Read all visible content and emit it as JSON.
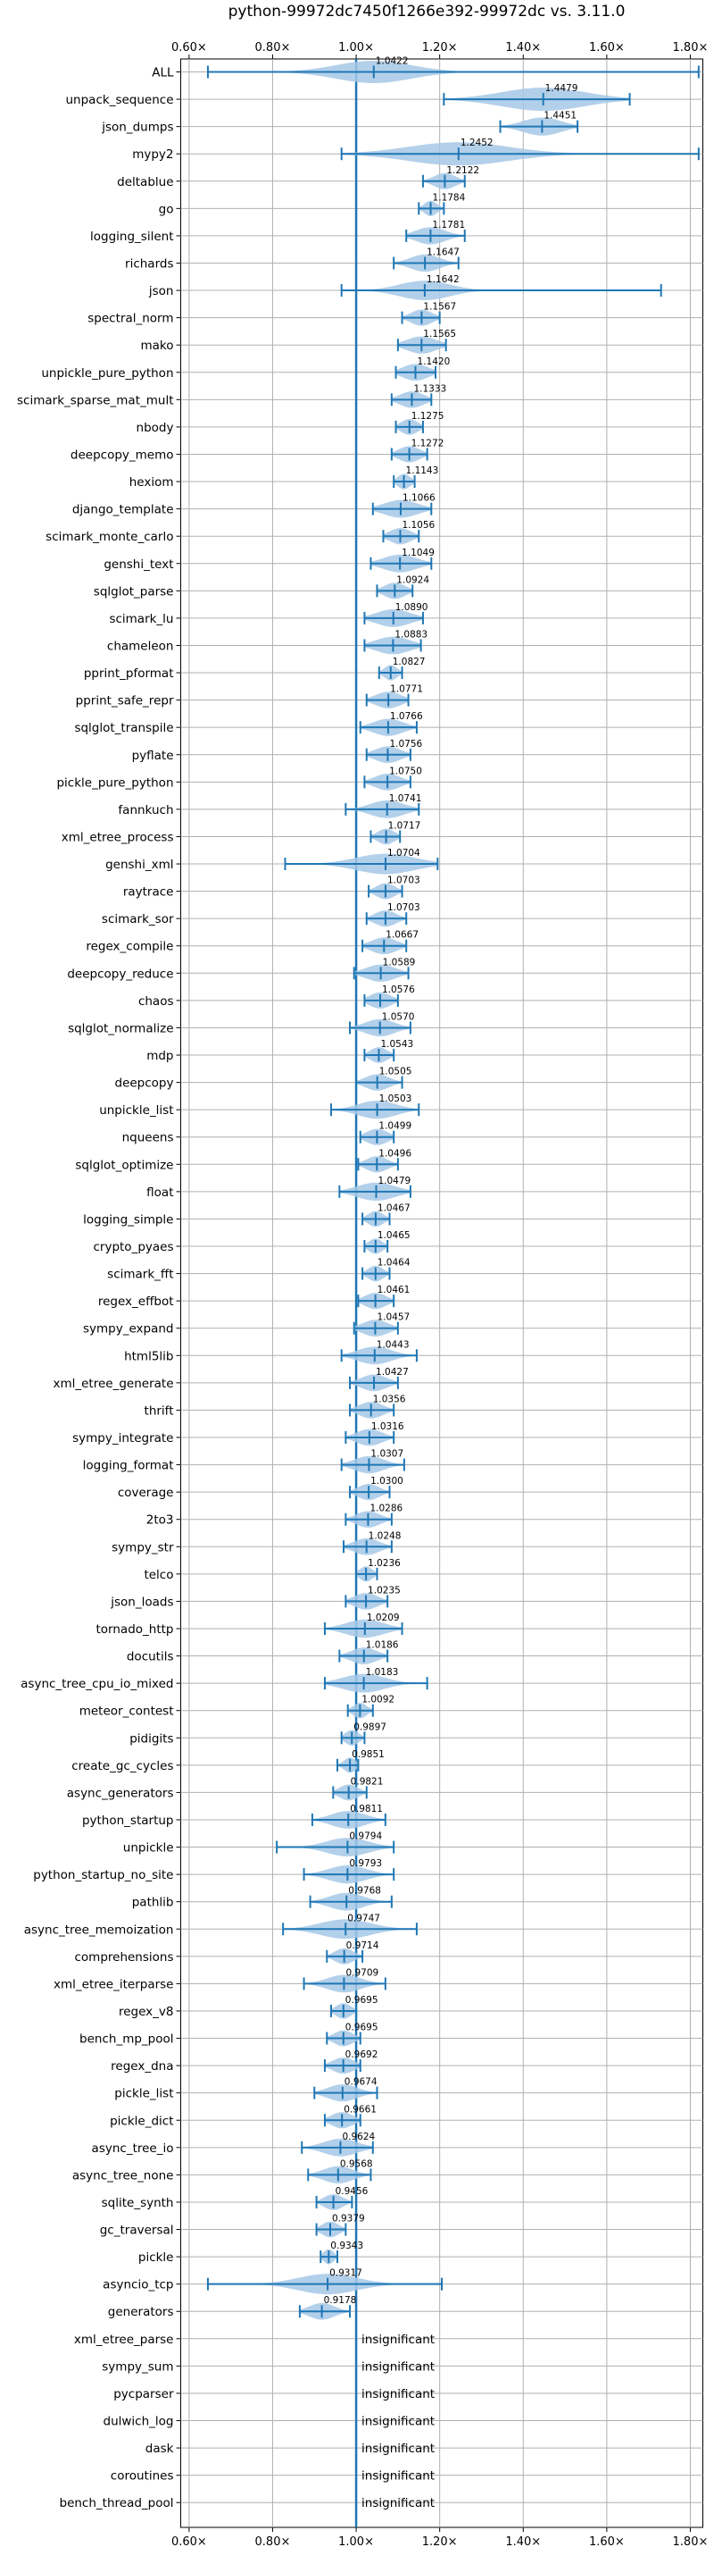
{
  "chart_data": {
    "type": "violin",
    "title": "python-99972dc7450f1266e392-99972dc vs. 3.11.0",
    "orientation": "horizontal",
    "xlim": [
      0.58,
      1.83
    ],
    "xticks": [
      0.6,
      0.8,
      1.0,
      1.2,
      1.4,
      1.6,
      1.8
    ],
    "xtick_labels": [
      "0.60×",
      "0.80×",
      "1.00×",
      "1.20×",
      "1.40×",
      "1.60×",
      "1.80×"
    ],
    "tick_positions": [
      "top",
      "bottom"
    ],
    "grid": true,
    "reference_line": 1.0,
    "colors": {
      "violin": "#a6c8e6",
      "lines": "#1f77b4",
      "grid": "#b0b0b0"
    },
    "categories": [
      "ALL",
      "unpack_sequence",
      "json_dumps",
      "mypy2",
      "deltablue",
      "go",
      "logging_silent",
      "richards",
      "json",
      "spectral_norm",
      "mako",
      "unpickle_pure_python",
      "scimark_sparse_mat_mult",
      "nbody",
      "deepcopy_memo",
      "hexiom",
      "django_template",
      "scimark_monte_carlo",
      "genshi_text",
      "sqlglot_parse",
      "scimark_lu",
      "chameleon",
      "pprint_pformat",
      "pprint_safe_repr",
      "sqlglot_transpile",
      "pyflate",
      "pickle_pure_python",
      "fannkuch",
      "xml_etree_process",
      "genshi_xml",
      "raytrace",
      "scimark_sor",
      "regex_compile",
      "deepcopy_reduce",
      "chaos",
      "sqlglot_normalize",
      "mdp",
      "deepcopy",
      "unpickle_list",
      "nqueens",
      "sqlglot_optimize",
      "float",
      "logging_simple",
      "crypto_pyaes",
      "scimark_fft",
      "regex_effbot",
      "sympy_expand",
      "html5lib",
      "xml_etree_generate",
      "thrift",
      "sympy_integrate",
      "logging_format",
      "coverage",
      "2to3",
      "sympy_str",
      "telco",
      "json_loads",
      "tornado_http",
      "docutils",
      "async_tree_cpu_io_mixed",
      "meteor_contest",
      "pidigits",
      "create_gc_cycles",
      "async_generators",
      "python_startup",
      "unpickle",
      "python_startup_no_site",
      "pathlib",
      "async_tree_memoization",
      "comprehensions",
      "xml_etree_iterparse",
      "regex_v8",
      "bench_mp_pool",
      "regex_dna",
      "pickle_list",
      "pickle_dict",
      "async_tree_io",
      "async_tree_none",
      "sqlite_synth",
      "gc_traversal",
      "pickle",
      "asyncio_tcp",
      "generators",
      "xml_etree_parse",
      "sympy_sum",
      "pycparser",
      "dulwich_log",
      "dask",
      "coroutines",
      "bench_thread_pool"
    ],
    "series": [
      {
        "label": "1.0422",
        "mean": 1.0422,
        "min": 0.645,
        "max": 1.82,
        "spread": 0.09
      },
      {
        "label": "1.4479",
        "mean": 1.4479,
        "min": 1.21,
        "max": 1.655,
        "spread": 0.1
      },
      {
        "label": "1.4451",
        "mean": 1.4451,
        "min": 1.345,
        "max": 1.53,
        "spread": 0.045
      },
      {
        "label": "1.2452",
        "mean": 1.2452,
        "min": 0.965,
        "max": 1.82,
        "spread": 0.12
      },
      {
        "label": "1.2122",
        "mean": 1.2122,
        "min": 1.16,
        "max": 1.26,
        "spread": 0.025
      },
      {
        "label": "1.1784",
        "mean": 1.1784,
        "min": 1.15,
        "max": 1.21,
        "spread": 0.015
      },
      {
        "label": "1.1781",
        "mean": 1.1781,
        "min": 1.12,
        "max": 1.26,
        "spread": 0.035
      },
      {
        "label": "1.1647",
        "mean": 1.1647,
        "min": 1.09,
        "max": 1.245,
        "spread": 0.035
      },
      {
        "label": "1.1642",
        "mean": 1.1642,
        "min": 0.965,
        "max": 1.73,
        "spread": 0.06
      },
      {
        "label": "1.1567",
        "mean": 1.1567,
        "min": 1.11,
        "max": 1.2,
        "spread": 0.025
      },
      {
        "label": "1.1565",
        "mean": 1.1565,
        "min": 1.1,
        "max": 1.215,
        "spread": 0.035
      },
      {
        "label": "1.1420",
        "mean": 1.142,
        "min": 1.095,
        "max": 1.19,
        "spread": 0.03
      },
      {
        "label": "1.1333",
        "mean": 1.1333,
        "min": 1.085,
        "max": 1.18,
        "spread": 0.028
      },
      {
        "label": "1.1275",
        "mean": 1.1275,
        "min": 1.095,
        "max": 1.16,
        "spread": 0.02
      },
      {
        "label": "1.1272",
        "mean": 1.1272,
        "min": 1.085,
        "max": 1.17,
        "spread": 0.025
      },
      {
        "label": "1.1143",
        "mean": 1.1143,
        "min": 1.09,
        "max": 1.14,
        "spread": 0.015
      },
      {
        "label": "1.1066",
        "mean": 1.1066,
        "min": 1.04,
        "max": 1.18,
        "spread": 0.04
      },
      {
        "label": "1.1056",
        "mean": 1.1056,
        "min": 1.065,
        "max": 1.15,
        "spread": 0.025
      },
      {
        "label": "1.1049",
        "mean": 1.1049,
        "min": 1.035,
        "max": 1.18,
        "spread": 0.04
      },
      {
        "label": "1.0924",
        "mean": 1.0924,
        "min": 1.05,
        "max": 1.135,
        "spread": 0.025
      },
      {
        "label": "1.0890",
        "mean": 1.089,
        "min": 1.02,
        "max": 1.16,
        "spread": 0.04
      },
      {
        "label": "1.0883",
        "mean": 1.0883,
        "min": 1.02,
        "max": 1.155,
        "spread": 0.04
      },
      {
        "label": "1.0827",
        "mean": 1.0827,
        "min": 1.055,
        "max": 1.11,
        "spread": 0.015
      },
      {
        "label": "1.0771",
        "mean": 1.0771,
        "min": 1.025,
        "max": 1.125,
        "spread": 0.03
      },
      {
        "label": "1.0766",
        "mean": 1.0766,
        "min": 1.01,
        "max": 1.145,
        "spread": 0.035
      },
      {
        "label": "1.0756",
        "mean": 1.0756,
        "min": 1.025,
        "max": 1.13,
        "spread": 0.03
      },
      {
        "label": "1.0750",
        "mean": 1.075,
        "min": 1.02,
        "max": 1.13,
        "spread": 0.03
      },
      {
        "label": "1.0741",
        "mean": 1.0741,
        "min": 0.975,
        "max": 1.15,
        "spread": 0.04
      },
      {
        "label": "1.0717",
        "mean": 1.0717,
        "min": 1.035,
        "max": 1.105,
        "spread": 0.02
      },
      {
        "label": "1.0704",
        "mean": 1.0704,
        "min": 0.83,
        "max": 1.195,
        "spread": 0.07
      },
      {
        "label": "1.0703",
        "mean": 1.0703,
        "min": 1.03,
        "max": 1.11,
        "spread": 0.022
      },
      {
        "label": "1.0703",
        "mean": 1.0703,
        "min": 1.025,
        "max": 1.12,
        "spread": 0.025
      },
      {
        "label": "1.0667",
        "mean": 1.0667,
        "min": 1.015,
        "max": 1.12,
        "spread": 0.03
      },
      {
        "label": "1.0589",
        "mean": 1.0589,
        "min": 0.995,
        "max": 1.125,
        "spread": 0.035
      },
      {
        "label": "1.0576",
        "mean": 1.0576,
        "min": 1.02,
        "max": 1.1,
        "spread": 0.025
      },
      {
        "label": "1.0570",
        "mean": 1.057,
        "min": 0.985,
        "max": 1.13,
        "spread": 0.035
      },
      {
        "label": "1.0543",
        "mean": 1.0543,
        "min": 1.02,
        "max": 1.09,
        "spread": 0.02
      },
      {
        "label": "1.0505",
        "mean": 1.0505,
        "min": 1.0,
        "max": 1.11,
        "spread": 0.028
      },
      {
        "label": "1.0503",
        "mean": 1.0503,
        "min": 0.94,
        "max": 1.15,
        "spread": 0.045
      },
      {
        "label": "1.0499",
        "mean": 1.0499,
        "min": 1.01,
        "max": 1.09,
        "spread": 0.025
      },
      {
        "label": "1.0496",
        "mean": 1.0496,
        "min": 1.005,
        "max": 1.1,
        "spread": 0.025
      },
      {
        "label": "1.0479",
        "mean": 1.0479,
        "min": 0.96,
        "max": 1.13,
        "spread": 0.045
      },
      {
        "label": "1.0467",
        "mean": 1.0467,
        "min": 1.015,
        "max": 1.08,
        "spread": 0.018
      },
      {
        "label": "1.0465",
        "mean": 1.0465,
        "min": 1.02,
        "max": 1.075,
        "spread": 0.016
      },
      {
        "label": "1.0464",
        "mean": 1.0464,
        "min": 1.015,
        "max": 1.08,
        "spread": 0.018
      },
      {
        "label": "1.0461",
        "mean": 1.0461,
        "min": 1.005,
        "max": 1.09,
        "spread": 0.025
      },
      {
        "label": "1.0457",
        "mean": 1.0457,
        "min": 0.995,
        "max": 1.1,
        "spread": 0.03
      },
      {
        "label": "1.0443",
        "mean": 1.0443,
        "min": 0.965,
        "max": 1.145,
        "spread": 0.04
      },
      {
        "label": "1.0427",
        "mean": 1.0427,
        "min": 0.985,
        "max": 1.1,
        "spread": 0.03
      },
      {
        "label": "1.0356",
        "mean": 1.0356,
        "min": 0.985,
        "max": 1.09,
        "spread": 0.028
      },
      {
        "label": "1.0316",
        "mean": 1.0316,
        "min": 0.975,
        "max": 1.09,
        "spread": 0.03
      },
      {
        "label": "1.0307",
        "mean": 1.0307,
        "min": 0.965,
        "max": 1.115,
        "spread": 0.035
      },
      {
        "label": "1.0300",
        "mean": 1.03,
        "min": 0.985,
        "max": 1.08,
        "spread": 0.025
      },
      {
        "label": "1.0286",
        "mean": 1.0286,
        "min": 0.975,
        "max": 1.085,
        "spread": 0.028
      },
      {
        "label": "1.0248",
        "mean": 1.0248,
        "min": 0.97,
        "max": 1.085,
        "spread": 0.03
      },
      {
        "label": "1.0236",
        "mean": 1.0236,
        "min": 1.0,
        "max": 1.05,
        "spread": 0.015
      },
      {
        "label": "1.0235",
        "mean": 1.0235,
        "min": 0.975,
        "max": 1.075,
        "spread": 0.028
      },
      {
        "label": "1.0209",
        "mean": 1.0209,
        "min": 0.925,
        "max": 1.11,
        "spread": 0.045
      },
      {
        "label": "1.0186",
        "mean": 1.0186,
        "min": 0.96,
        "max": 1.075,
        "spread": 0.03
      },
      {
        "label": "1.0183",
        "mean": 1.0183,
        "min": 0.925,
        "max": 1.17,
        "spread": 0.05
      },
      {
        "label": "1.0092",
        "mean": 1.0092,
        "min": 0.98,
        "max": 1.04,
        "spread": 0.016
      },
      {
        "label": "0.9897",
        "mean": 0.9897,
        "min": 0.965,
        "max": 1.02,
        "spread": 0.016
      },
      {
        "label": "0.9851",
        "mean": 0.9851,
        "min": 0.955,
        "max": 1.005,
        "spread": 0.014
      },
      {
        "label": "0.9821",
        "mean": 0.9821,
        "min": 0.945,
        "max": 1.025,
        "spread": 0.022
      },
      {
        "label": "0.9811",
        "mean": 0.9811,
        "min": 0.895,
        "max": 1.07,
        "spread": 0.04
      },
      {
        "label": "0.9794",
        "mean": 0.9794,
        "min": 0.81,
        "max": 1.09,
        "spread": 0.05
      },
      {
        "label": "0.9793",
        "mean": 0.9793,
        "min": 0.875,
        "max": 1.09,
        "spread": 0.045
      },
      {
        "label": "0.9768",
        "mean": 0.9768,
        "min": 0.89,
        "max": 1.085,
        "spread": 0.04
      },
      {
        "label": "0.9747",
        "mean": 0.9747,
        "min": 0.825,
        "max": 1.145,
        "spread": 0.06
      },
      {
        "label": "0.9714",
        "mean": 0.9714,
        "min": 0.93,
        "max": 1.015,
        "spread": 0.022
      },
      {
        "label": "0.9709",
        "mean": 0.9709,
        "min": 0.875,
        "max": 1.07,
        "spread": 0.04
      },
      {
        "label": "0.9695",
        "mean": 0.9695,
        "min": 0.94,
        "max": 1.0,
        "spread": 0.018
      },
      {
        "label": "0.9695",
        "mean": 0.9695,
        "min": 0.93,
        "max": 1.01,
        "spread": 0.022
      },
      {
        "label": "0.9692",
        "mean": 0.9692,
        "min": 0.925,
        "max": 1.01,
        "spread": 0.025
      },
      {
        "label": "0.9674",
        "mean": 0.9674,
        "min": 0.9,
        "max": 1.05,
        "spread": 0.035
      },
      {
        "label": "0.9661",
        "mean": 0.9661,
        "min": 0.925,
        "max": 1.01,
        "spread": 0.025
      },
      {
        "label": "0.9624",
        "mean": 0.9624,
        "min": 0.87,
        "max": 1.04,
        "spread": 0.04
      },
      {
        "label": "0.9568",
        "mean": 0.9568,
        "min": 0.885,
        "max": 1.035,
        "spread": 0.035
      },
      {
        "label": "0.9456",
        "mean": 0.9456,
        "min": 0.905,
        "max": 0.99,
        "spread": 0.022
      },
      {
        "label": "0.9379",
        "mean": 0.9379,
        "min": 0.905,
        "max": 0.975,
        "spread": 0.02
      },
      {
        "label": "0.9343",
        "mean": 0.9343,
        "min": 0.915,
        "max": 0.955,
        "spread": 0.012
      },
      {
        "label": "0.9317",
        "mean": 0.9317,
        "min": 0.645,
        "max": 1.205,
        "spread": 0.07
      },
      {
        "label": "0.9178",
        "mean": 0.9178,
        "min": 0.865,
        "max": 0.985,
        "spread": 0.03
      },
      {
        "label": "insignificant",
        "insignificant": true
      },
      {
        "label": "insignificant",
        "insignificant": true
      },
      {
        "label": "insignificant",
        "insignificant": true
      },
      {
        "label": "insignificant",
        "insignificant": true
      },
      {
        "label": "insignificant",
        "insignificant": true
      },
      {
        "label": "insignificant",
        "insignificant": true
      },
      {
        "label": "insignificant",
        "insignificant": true
      }
    ]
  }
}
